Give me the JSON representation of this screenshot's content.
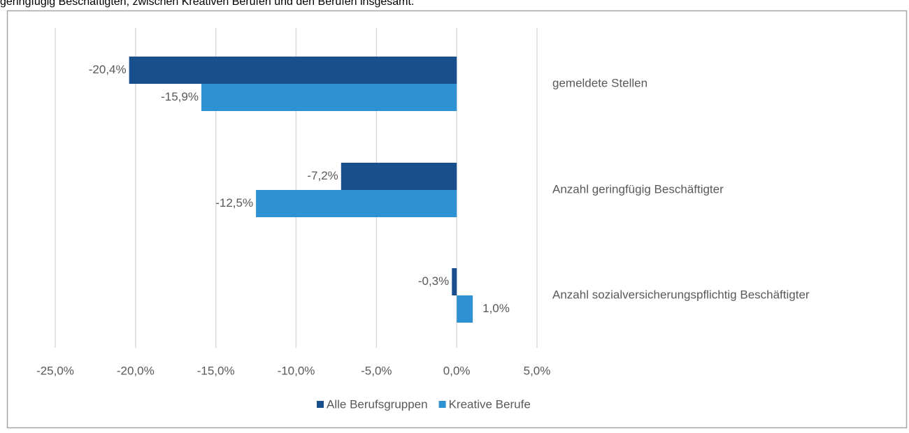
{
  "caption": "geringfügig Beschäftigten, zwischen Kreativen Berufen und den Berufen insgesamt.",
  "chart_data": {
    "type": "barh",
    "categories": [
      "gemeldete Stellen",
      "Anzahl geringfügig Beschäftigter",
      "Anzahl sozialversicherungspflichtig Beschäftigter"
    ],
    "series": [
      {
        "name": "Alle Berufsgruppen",
        "color": "#1a4f8e",
        "values": [
          -20.4,
          -7.2,
          -0.3
        ],
        "value_labels": [
          "-20,4%",
          "-7,2%",
          "-0,3%"
        ]
      },
      {
        "name": "Kreative Berufe",
        "color": "#2e92d2",
        "values": [
          -15.9,
          -12.5,
          1.0
        ],
        "value_labels": [
          "-15,9%",
          "-12,5%",
          "1,0%"
        ]
      }
    ],
    "xlim": [
      -25,
      5
    ],
    "xticks": [
      {
        "value": -25,
        "label": "-25,0%"
      },
      {
        "value": -20,
        "label": "-20,0%"
      },
      {
        "value": -15,
        "label": "-15,0%"
      },
      {
        "value": -10,
        "label": "-10,0%"
      },
      {
        "value": -5,
        "label": "-5,0%"
      },
      {
        "value": 0,
        "label": "0,0%"
      },
      {
        "value": 5,
        "label": "5,0%"
      }
    ],
    "grid": true,
    "legend": "bottom"
  }
}
